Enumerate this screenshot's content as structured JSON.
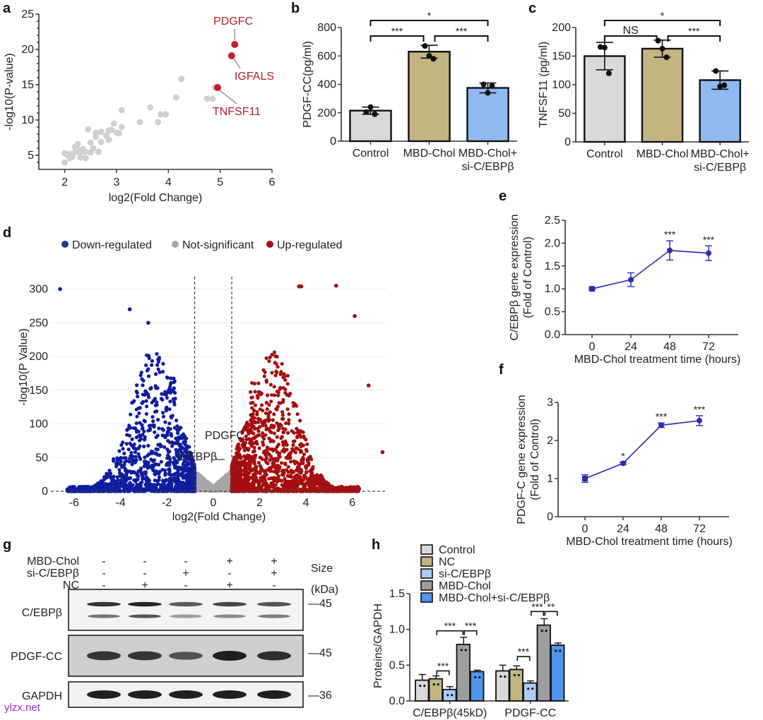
{
  "figure": {
    "panel_labels": [
      "a",
      "b",
      "c",
      "d",
      "e",
      "f",
      "g",
      "h"
    ],
    "watermark": "ylzx.net"
  },
  "chart_data": [
    {
      "id": "a",
      "type": "scatter",
      "xlabel": "log2(Fold Change)",
      "ylabel": "-log10(P-value)",
      "xlim": [
        1.5,
        6
      ],
      "ylim": [
        3,
        25
      ],
      "xticks": [
        2,
        3,
        4,
        5,
        6
      ],
      "yticks": [
        5,
        10,
        15,
        20,
        25
      ],
      "grey_points": [
        [
          2,
          4
        ],
        [
          2,
          5.3
        ],
        [
          2.05,
          5
        ],
        [
          2.1,
          4.6
        ],
        [
          2.1,
          5.2
        ],
        [
          2.15,
          4.8
        ],
        [
          2.2,
          5.5
        ],
        [
          2.2,
          6.2
        ],
        [
          2.25,
          6.6
        ],
        [
          2.25,
          5.8
        ],
        [
          2.3,
          5.3
        ],
        [
          2.3,
          4.7
        ],
        [
          2.35,
          5.9
        ],
        [
          2.4,
          5.5
        ],
        [
          2.4,
          4.6
        ],
        [
          2.45,
          8.7
        ],
        [
          2.5,
          5.4
        ],
        [
          2.5,
          6.8
        ],
        [
          2.55,
          6
        ],
        [
          2.6,
          8.2
        ],
        [
          2.6,
          7.6
        ],
        [
          2.65,
          5.5
        ],
        [
          2.7,
          8.3
        ],
        [
          2.7,
          6.9
        ],
        [
          2.8,
          7.8
        ],
        [
          2.85,
          8.5
        ],
        [
          2.85,
          7.2
        ],
        [
          2.9,
          8.6
        ],
        [
          2.95,
          9.5
        ],
        [
          3.0,
          8.2
        ],
        [
          3.05,
          8.1
        ],
        [
          3.1,
          9.0
        ],
        [
          3.1,
          11.4
        ],
        [
          3.45,
          9.7
        ],
        [
          3.65,
          11.8
        ],
        [
          3.8,
          9.7
        ],
        [
          3.85,
          10.8
        ],
        [
          3.95,
          10.8
        ],
        [
          4.15,
          13.2
        ],
        [
          4.25,
          15.8
        ],
        [
          4.75,
          13.0
        ],
        [
          4.85,
          13.0
        ],
        [
          4.9,
          14.6
        ]
      ],
      "highlighted": [
        {
          "label": "PDGFC",
          "x": 5.28,
          "y": 20.7
        },
        {
          "label": "IGFALS",
          "x": 5.22,
          "y": 19.1
        },
        {
          "label": "TNFSF11",
          "x": 4.95,
          "y": 14.6
        }
      ],
      "colors": {
        "grey": "#d0d0d0",
        "highlight": "#c81e2e",
        "label": "#b22030"
      }
    },
    {
      "id": "b",
      "type": "bar",
      "ylabel": "PDGF-CC(pg/ml)",
      "ylim": [
        0,
        800
      ],
      "yticks": [
        0,
        200,
        400,
        600,
        800
      ],
      "categories": [
        "Control",
        "MBD-Chol",
        "MBD-Chol+\nsi-C/EBPβ"
      ],
      "category_lines": [
        [
          "Control"
        ],
        [
          "MBD-Chol"
        ],
        [
          "MBD-Chol+",
          "si-C/EBPβ"
        ]
      ],
      "values": [
        215,
        630,
        375
      ],
      "errors": [
        25,
        45,
        35
      ],
      "points": [
        [
          205,
          240,
          190
        ],
        [
          670,
          600,
          580
        ],
        [
          400,
          340,
          390
        ]
      ],
      "colors": [
        "#d9d9d9",
        "#c3b57f",
        "#8fbaf1"
      ],
      "significance": [
        {
          "from": 0,
          "to": 1,
          "label": "***",
          "level": 1
        },
        {
          "from": 1,
          "to": 2,
          "label": "***",
          "level": 1
        },
        {
          "from": 0,
          "to": 2,
          "label": "*",
          "level": 2
        }
      ]
    },
    {
      "id": "c",
      "type": "bar",
      "ylabel": "TNFSF11 (pg/ml)",
      "ylim": [
        0,
        200
      ],
      "yticks": [
        0,
        50,
        100,
        150,
        200
      ],
      "categories": [
        "Control",
        "MBD-Chol",
        "MBD-Chol+\nsi-C/EBPβ"
      ],
      "category_lines": [
        [
          "Control"
        ],
        [
          "MBD-Chol"
        ],
        [
          "MBD-Chol+",
          "si-C/EBPβ"
        ]
      ],
      "values": [
        150,
        163,
        108
      ],
      "errors": [
        24,
        15,
        16
      ],
      "points": [
        [
          166,
          165,
          120
        ],
        [
          177,
          163,
          148
        ],
        [
          124,
          97,
          99
        ]
      ],
      "colors": [
        "#d9d9d9",
        "#c3b57f",
        "#8fbaf1"
      ],
      "significance": [
        {
          "from": 0,
          "to": 1,
          "label": "NS",
          "level": 1
        },
        {
          "from": 1,
          "to": 2,
          "label": "***",
          "level": 1
        },
        {
          "from": 0,
          "to": 2,
          "label": "*",
          "level": 2
        }
      ]
    },
    {
      "id": "d",
      "type": "scatter",
      "xlabel": "log2(Fold Change)",
      "ylabel": "-log10(P Value)",
      "xlim": [
        -7,
        7.5
      ],
      "ylim": [
        0,
        310
      ],
      "xticks": [
        -6,
        -4,
        -2,
        0,
        2,
        4,
        6
      ],
      "yticks": [
        0,
        50,
        100,
        150,
        200,
        250,
        300
      ],
      "thresholds_x": [
        -0.8,
        0.8
      ],
      "threshold_y": 0,
      "legend": [
        {
          "label": "Down-regulated",
          "color": "#1a3f8f"
        },
        {
          "label": "Not-significant",
          "color": "#a6a6a6"
        },
        {
          "label": "Up-regulated",
          "color": "#a31010"
        }
      ],
      "annotations": [
        {
          "label": "PDGFC",
          "x": 1.5,
          "y": 65
        },
        {
          "label": "C/EBPβ",
          "x": 1.1,
          "y": 48
        }
      ],
      "notable_points": [
        [
          -6.6,
          300
        ],
        [
          -3.6,
          270
        ],
        [
          -2.8,
          250
        ],
        [
          5.3,
          305
        ],
        [
          3.7,
          304
        ],
        [
          3.8,
          304
        ],
        [
          6.1,
          260
        ],
        [
          6.7,
          157
        ],
        [
          7.3,
          58
        ]
      ],
      "colors": {
        "down": "#0f1d9e",
        "ns": "#a6a6a6",
        "up": "#a50f0f"
      }
    },
    {
      "id": "e",
      "type": "line",
      "xlabel": "MBD-Chol treatment time (hours)",
      "ylabel": "C/EBPβ gene expression\n(Fold of Control)",
      "ylabel_lines": [
        "C/EBPβ gene expression",
        "(Fold of Control)"
      ],
      "x": [
        0,
        24,
        48,
        72
      ],
      "values": [
        1.0,
        1.2,
        1.84,
        1.78
      ],
      "errors": [
        0.02,
        0.15,
        0.21,
        0.16
      ],
      "significance": [
        "",
        "",
        "***",
        "***"
      ],
      "ylim": [
        0,
        2.5
      ],
      "yticks": [
        "0.0",
        "0.5",
        "1.0",
        "1.5",
        "2.0",
        "2.5"
      ],
      "xticks": [
        "0",
        "24",
        "48",
        "72"
      ],
      "color": "#2b2bb8"
    },
    {
      "id": "f",
      "type": "line",
      "xlabel": "MBD-Chol treatment time (hours)",
      "ylabel": "PDGF-C gene expression\n(Fold of Control)",
      "ylabel_lines": [
        "PDGF-C gene expression",
        "(Fold of Control)"
      ],
      "x": [
        0,
        24,
        48,
        72
      ],
      "values": [
        1.0,
        1.4,
        2.4,
        2.52
      ],
      "errors": [
        0.1,
        0.03,
        0.06,
        0.13
      ],
      "significance": [
        "",
        "*",
        "***",
        "***"
      ],
      "ylim": [
        0,
        3
      ],
      "yticks": [
        "0",
        "1",
        "2",
        "3"
      ],
      "xticks": [
        "0",
        "24",
        "48",
        "72"
      ],
      "color": "#2b2bb8"
    },
    {
      "id": "h",
      "type": "bar",
      "ylabel": "Proteins/GAPDH",
      "ylim": [
        0,
        1.5
      ],
      "yticks": [
        "0.0",
        "0.5",
        "1.0",
        "1.5"
      ],
      "categories": [
        "C/EBPβ(45kD)",
        "PDGF-CC"
      ],
      "series": [
        {
          "name": "Control",
          "color": "#d9d9d9",
          "values": [
            0.29,
            0.42
          ],
          "errors": [
            0.08,
            0.08
          ]
        },
        {
          "name": "NC",
          "color": "#c3b57f",
          "values": [
            0.31,
            0.44
          ],
          "errors": [
            0.04,
            0.05
          ]
        },
        {
          "name": "si-C/EBPβ",
          "color": "#a9cdf5",
          "values": [
            0.16,
            0.25
          ],
          "errors": [
            0.04,
            0.03
          ]
        },
        {
          "name": "MBD-Chol",
          "color": "#9e9e9e",
          "values": [
            0.79,
            1.06
          ],
          "errors": [
            0.1,
            0.09
          ]
        },
        {
          "name": "MBD-Chol+si-C/EBPβ",
          "color": "#4e95ec",
          "values": [
            0.41,
            0.78
          ],
          "errors": [
            0.02,
            0.03
          ]
        }
      ],
      "significance": [
        {
          "group": 0,
          "from": 1,
          "to": 2,
          "label": "***"
        },
        {
          "group": 0,
          "from": 1,
          "to": 3,
          "label": "***"
        },
        {
          "group": 0,
          "from": 3,
          "to": 4,
          "label": "***"
        },
        {
          "group": 1,
          "from": 1,
          "to": 2,
          "label": "***"
        },
        {
          "group": 1,
          "from": 2,
          "to": 3,
          "label": "***"
        },
        {
          "group": 1,
          "from": 3,
          "to": 4,
          "label": "**"
        }
      ]
    }
  ],
  "western_blot": {
    "treatments": [
      {
        "name": "MBD-Chol",
        "signs": [
          "-",
          "-",
          "-",
          "+",
          "+"
        ]
      },
      {
        "name": "si-C/EBPβ",
        "signs": [
          "-",
          "-",
          "+",
          "-",
          "+"
        ]
      },
      {
        "name": "NC",
        "signs": [
          "-",
          "+",
          "-",
          "+",
          "-"
        ]
      }
    ],
    "size_header": [
      "Size",
      "(kDa)"
    ],
    "rows": [
      {
        "label": "C/EBPβ",
        "marker": "—45",
        "intensity": [
          0.85,
          0.95,
          0.55,
          0.7,
          0.6
        ],
        "intensity2": [
          0.6,
          0.85,
          0.3,
          0.45,
          0.55
        ]
      },
      {
        "label": "PDGF-CC",
        "marker": "—45",
        "intensity": [
          0.8,
          0.8,
          0.55,
          1.0,
          0.85
        ]
      },
      {
        "label": "GAPDH",
        "marker": "—36",
        "intensity": [
          1,
          1,
          1,
          1,
          1
        ]
      }
    ]
  }
}
